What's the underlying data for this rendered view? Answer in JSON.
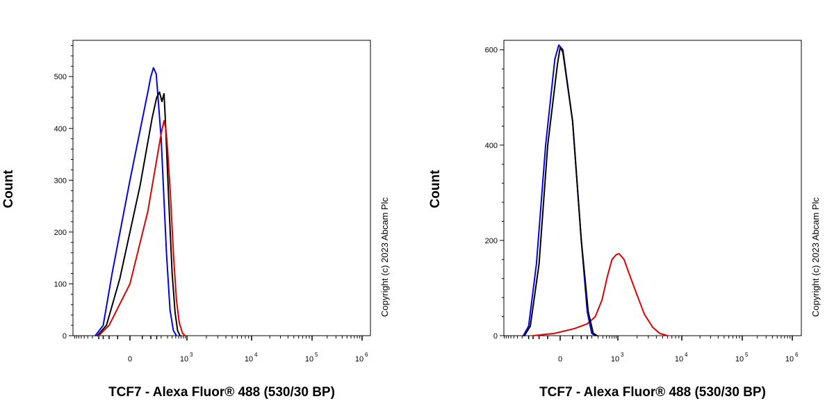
{
  "chart_data": [
    {
      "type": "line",
      "xlabel": "TCF7 - Alexa Fluor® 488 (530/30 BP)",
      "ylabel": "Count",
      "copyright": "Copyright (c) 2023 Abcam Plc",
      "x_scale": "biexponential",
      "ylim": [
        0,
        570
      ],
      "y_ticks": [
        0,
        100,
        200,
        300,
        400,
        500
      ],
      "x_ticks": [
        {
          "value": 0,
          "base": "0",
          "exp": ""
        },
        {
          "value": 1000,
          "base": "10",
          "exp": "3"
        },
        {
          "value": 10000,
          "base": "10",
          "exp": "4"
        },
        {
          "value": 100000,
          "base": "10",
          "exp": "5"
        },
        {
          "value": 1000000,
          "base": "10",
          "exp": "6"
        }
      ],
      "grid": false,
      "series": [
        {
          "color": "#0000ee",
          "points": [
            [
              -250,
              0
            ],
            [
              -150,
              20
            ],
            [
              -80,
              120
            ],
            [
              0,
              300
            ],
            [
              80,
              470
            ],
            [
              100,
              500
            ],
            [
              120,
              517
            ],
            [
              145,
              505
            ],
            [
              200,
              380
            ],
            [
              280,
              160
            ],
            [
              350,
              50
            ],
            [
              430,
              10
            ],
            [
              520,
              0
            ]
          ]
        },
        {
          "color": "#000000",
          "points": [
            [
              -220,
              0
            ],
            [
              -120,
              20
            ],
            [
              -40,
              110
            ],
            [
              40,
              290
            ],
            [
              110,
              420
            ],
            [
              150,
              460
            ],
            [
              180,
              470
            ],
            [
              210,
              452
            ],
            [
              240,
              467
            ],
            [
              260,
              420
            ],
            [
              320,
              270
            ],
            [
              400,
              120
            ],
            [
              480,
              45
            ],
            [
              560,
              10
            ],
            [
              650,
              0
            ]
          ]
        },
        {
          "color": "#dd0000",
          "points": [
            [
              -200,
              0
            ],
            [
              -100,
              20
            ],
            [
              0,
              100
            ],
            [
              80,
              240
            ],
            [
              150,
              340
            ],
            [
              200,
              390
            ],
            [
              240,
              415
            ],
            [
              270,
              398
            ],
            [
              300,
              360
            ],
            [
              360,
              270
            ],
            [
              440,
              150
            ],
            [
              520,
              70
            ],
            [
              620,
              25
            ],
            [
              760,
              5
            ],
            [
              900,
              0
            ]
          ]
        }
      ]
    },
    {
      "type": "line",
      "xlabel": "TCF7 - Alexa Fluor® 488 (530/30 BP)",
      "ylabel": "Count",
      "copyright": "Copyright (c) 2023 Abcam Plc",
      "x_scale": "biexponential",
      "ylim": [
        0,
        620
      ],
      "y_ticks": [
        0,
        200,
        400,
        600
      ],
      "x_ticks": [
        {
          "value": 0,
          "base": "0",
          "exp": ""
        },
        {
          "value": 1000,
          "base": "10",
          "exp": "3"
        },
        {
          "value": 10000,
          "base": "10",
          "exp": "4"
        },
        {
          "value": 100000,
          "base": "10",
          "exp": "5"
        },
        {
          "value": 1000000,
          "base": "10",
          "exp": "6"
        }
      ],
      "grid": false,
      "series": [
        {
          "color": "#dd0000",
          "points": [
            [
              -150,
              0
            ],
            [
              -20,
              5
            ],
            [
              60,
              15
            ],
            [
              150,
              25
            ],
            [
              250,
              40
            ],
            [
              380,
              75
            ],
            [
              530,
              125
            ],
            [
              700,
              160
            ],
            [
              900,
              170
            ],
            [
              1050,
              172
            ],
            [
              1250,
              160
            ],
            [
              1550,
              125
            ],
            [
              2000,
              85
            ],
            [
              2600,
              45
            ],
            [
              3500,
              18
            ],
            [
              4500,
              5
            ],
            [
              6000,
              0
            ]
          ]
        },
        {
          "color": "#0000ee",
          "points": [
            [
              -280,
              0
            ],
            [
              -200,
              20
            ],
            [
              -120,
              150
            ],
            [
              -60,
              400
            ],
            [
              -20,
              580
            ],
            [
              -5,
              610
            ],
            [
              10,
              600
            ],
            [
              50,
              450
            ],
            [
              100,
              200
            ],
            [
              150,
              50
            ],
            [
              200,
              5
            ],
            [
              250,
              0
            ]
          ]
        },
        {
          "color": "#000000",
          "points": [
            [
              -260,
              0
            ],
            [
              -180,
              20
            ],
            [
              -100,
              150
            ],
            [
              -50,
              400
            ],
            [
              -10,
              570
            ],
            [
              0,
              605
            ],
            [
              10,
              595
            ],
            [
              50,
              450
            ],
            [
              100,
              200
            ],
            [
              160,
              50
            ],
            [
              220,
              5
            ],
            [
              280,
              0
            ]
          ]
        }
      ]
    }
  ]
}
